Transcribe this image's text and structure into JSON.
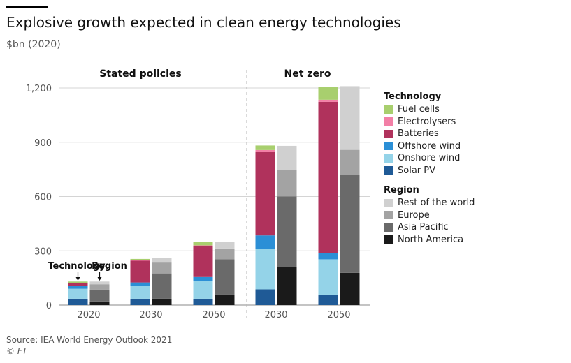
{
  "title": "Explosive growth expected in clean energy technologies",
  "subtitle": "$bn (2020)",
  "source": "Source: IEA World Energy Outlook 2021",
  "copyright": "© FT",
  "chart_data": {
    "type": "bar",
    "stacked": true,
    "y_ticks": [
      "0",
      "300",
      "600",
      "900",
      "1,200"
    ],
    "ylim": [
      0,
      1200
    ],
    "groups": [
      {
        "label": "Stated policies",
        "categories": [
          "2020",
          "2030",
          "2050"
        ]
      },
      {
        "label": "Net zero",
        "categories": [
          "2030",
          "2050"
        ]
      }
    ],
    "annotations": {
      "technology": "Technology",
      "region": "Region"
    },
    "technology_legend_title": "Technology",
    "region_legend_title": "Region",
    "technology_series": [
      {
        "name": "Solar PV",
        "color": "#1f5a96",
        "values": [
          35,
          35,
          35,
          87,
          58
        ]
      },
      {
        "name": "Onshore wind",
        "color": "#94d3e8",
        "values": [
          55,
          70,
          100,
          223,
          195
        ]
      },
      {
        "name": "Offshore wind",
        "color": "#2b8fd6",
        "values": [
          15,
          20,
          20,
          75,
          35
        ]
      },
      {
        "name": "Batteries",
        "color": "#b0325c",
        "values": [
          15,
          120,
          170,
          460,
          835
        ]
      },
      {
        "name": "Electrolysers",
        "color": "#f27fa6",
        "values": [
          2,
          3,
          5,
          12,
          12
        ]
      },
      {
        "name": "Fuel cells",
        "color": "#a8cf6e",
        "values": [
          8,
          7,
          20,
          25,
          70
        ]
      }
    ],
    "region_series": [
      {
        "name": "North America",
        "color": "#1a1a1a",
        "values": [
          20,
          35,
          58,
          210,
          178
        ]
      },
      {
        "name": "Asia Pacific",
        "color": "#6a6a6a",
        "values": [
          65,
          140,
          195,
          390,
          540
        ]
      },
      {
        "name": "Europe",
        "color": "#a3a3a3",
        "values": [
          30,
          60,
          60,
          145,
          140
        ]
      },
      {
        "name": "Rest of the world",
        "color": "#d0d0d0",
        "values": [
          15,
          27,
          37,
          135,
          352
        ]
      }
    ],
    "legend_technology_order": [
      "Fuel cells",
      "Electrolysers",
      "Batteries",
      "Offshore wind",
      "Onshore wind",
      "Solar PV"
    ],
    "legend_region_order": [
      "Rest of the world",
      "Europe",
      "Asia Pacific",
      "North America"
    ]
  }
}
